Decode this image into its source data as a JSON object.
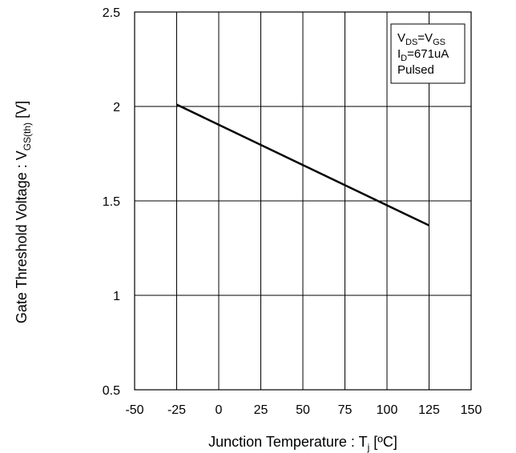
{
  "chart_data": {
    "type": "line",
    "title": "",
    "xlabel": {
      "prefix": "Junction Temperature : T",
      "sub": "j",
      "suffix": " [ºC]"
    },
    "ylabel": {
      "prefix": "Gate Threshold Voltage : V",
      "sub": "GS(th)",
      "suffix": " [V]"
    },
    "xlim": [
      -50,
      150
    ],
    "ylim": [
      0.5,
      2.5
    ],
    "xticks": [
      -50,
      -25,
      0,
      25,
      50,
      75,
      100,
      125,
      150
    ],
    "yticks": [
      0.5,
      1,
      1.5,
      2,
      2.5
    ],
    "xtick_labels": [
      "-50",
      "-25",
      "0",
      "25",
      "50",
      "75",
      "100",
      "125",
      "150"
    ],
    "ytick_labels": [
      "0.5",
      "1",
      "1.5",
      "2",
      "2.5"
    ],
    "grid": true,
    "series": [
      {
        "x": [
          -25,
          125
        ],
        "y": [
          2.01,
          1.37
        ],
        "color": "#000000"
      }
    ],
    "annotation": {
      "placement": "top-right",
      "lines": [
        [
          {
            "t": "V",
            "sub": false
          },
          {
            "t": "DS",
            "sub": true
          },
          {
            "t": "=V",
            "sub": false
          },
          {
            "t": "GS",
            "sub": true
          }
        ],
        [
          {
            "t": "I",
            "sub": false
          },
          {
            "t": "D",
            "sub": true
          },
          {
            "t": "=671uA",
            "sub": false
          }
        ],
        [
          {
            "t": "Pulsed",
            "sub": false
          }
        ]
      ]
    }
  }
}
